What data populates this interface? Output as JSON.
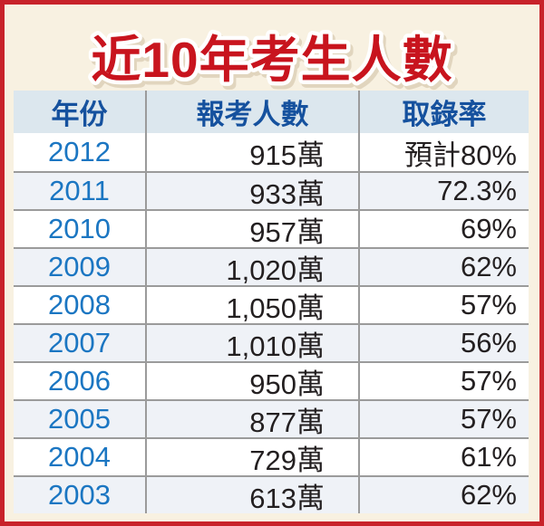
{
  "title": "近10年考生人數",
  "colors": {
    "frame_border": "#c8222a",
    "background": "#f8f1e1",
    "title_red": "#c8141e",
    "title_outline": "#ffffff",
    "header_background": "#dce7ee",
    "header_text": "#15519e",
    "year_blue": "#1b76c2",
    "value_text": "#231f20",
    "alt_row": "#eff2f7",
    "grid_line": "#9b9b9b"
  },
  "chart_data": {
    "type": "table",
    "title": "近10年考生人數",
    "columns": [
      "年份",
      "報考人數",
      "取錄率"
    ],
    "rows": [
      [
        "2012",
        "915萬",
        "預計80%"
      ],
      [
        "2011",
        "933萬",
        "72.3%"
      ],
      [
        "2010",
        "957萬",
        "69%"
      ],
      [
        "2009",
        "1,020萬",
        "62%"
      ],
      [
        "2008",
        "1,050萬",
        "57%"
      ],
      [
        "2007",
        "1,010萬",
        "56%"
      ],
      [
        "2006",
        "950萬",
        "57%"
      ],
      [
        "2005",
        "877萬",
        "57%"
      ],
      [
        "2004",
        "729萬",
        "61%"
      ],
      [
        "2003",
        "613萬",
        "62%"
      ]
    ],
    "notes": "年份=year, 報考人數=number of applicants (萬 = 10,000), 取錄率=admission rate; 2012 value is a forecast (預計)"
  }
}
